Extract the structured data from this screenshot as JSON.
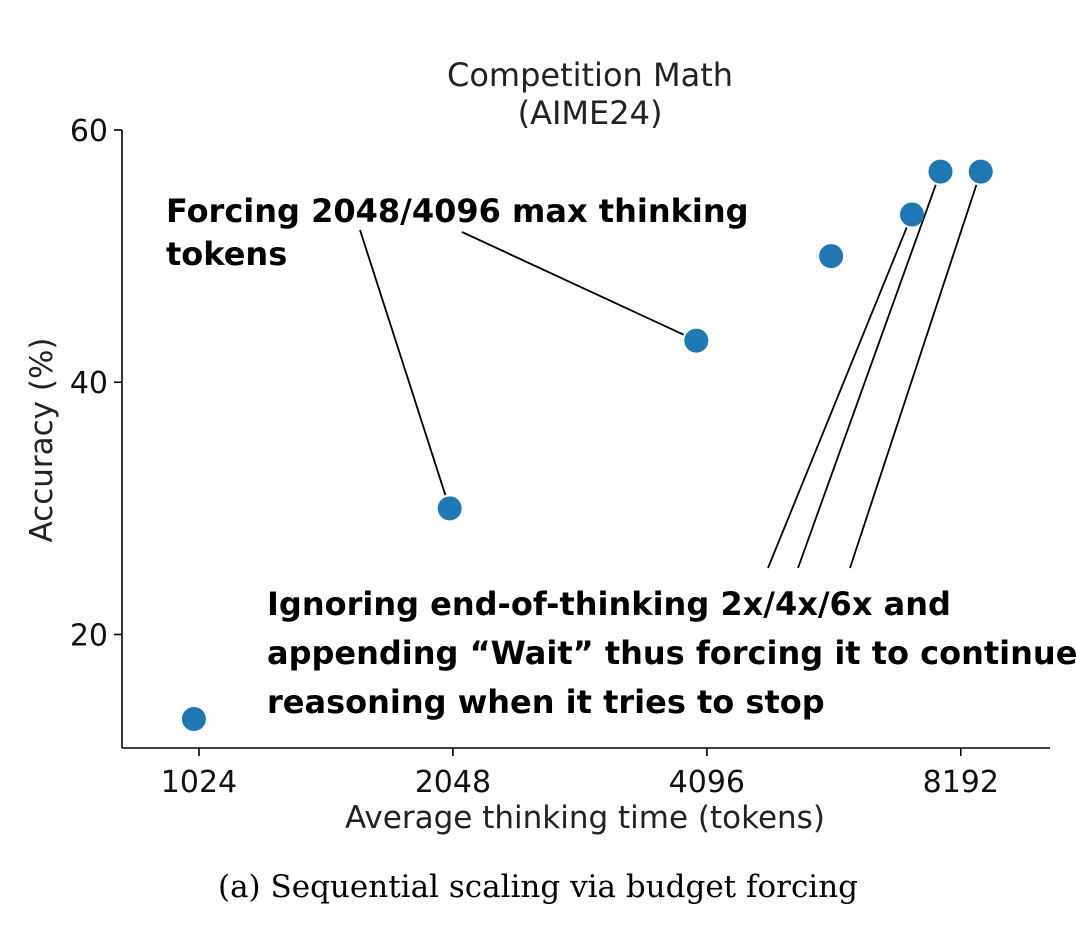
{
  "chart_data": {
    "type": "scatter",
    "title": [
      "Competition Math",
      "(AIME24)"
    ],
    "xlabel": "Average thinking time (tokens)",
    "ylabel": "Accuracy (%)",
    "x_scale": "log2",
    "x_ticks": [
      1024,
      2048,
      4096,
      8192
    ],
    "x_tick_labels": [
      "1024",
      "2048",
      "4096",
      "8192"
    ],
    "y_ticks": [
      20,
      40,
      60
    ],
    "y_tick_labels": [
      "20",
      "40",
      "60"
    ],
    "xlim": [
      830,
      10450
    ],
    "ylim": [
      11,
      60
    ],
    "grid": false,
    "color": "#1f77b4",
    "points": [
      {
        "x": 1010,
        "y": 13.3
      },
      {
        "x": 2030,
        "y": 30.0
      },
      {
        "x": 3980,
        "y": 43.3
      },
      {
        "x": 5750,
        "y": 50.0
      },
      {
        "x": 7170,
        "y": 53.3
      },
      {
        "x": 7750,
        "y": 56.7
      },
      {
        "x": 8650,
        "y": 56.7
      }
    ],
    "annotations": [
      {
        "lines": [
          "Forcing 2048/4096 max thinking",
          "tokens"
        ],
        "targets": [
          1,
          2
        ]
      },
      {
        "lines": [
          "Ignoring end-of-thinking 2x/4x/6x and",
          "appending “Wait” thus forcing it to continue",
          "reasoning when it tries to stop"
        ],
        "targets": [
          4,
          5,
          6
        ]
      }
    ]
  },
  "caption": "(a) Sequential scaling via budget forcing"
}
